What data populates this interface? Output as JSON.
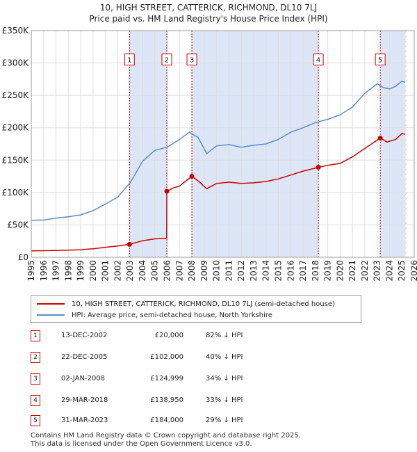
{
  "title_line1": "10, HIGH STREET, CATTERICK, RICHMOND, DL10 7LJ",
  "title_line2": "Price paid vs. HM Land Registry's House Price Index (HPI)",
  "colors": {
    "price": "#cc0000",
    "hpi": "#5b8cc8",
    "shade": "#dde6f7",
    "grid": "#dddddd"
  },
  "legend": {
    "price_label": "10, HIGH STREET, CATTERICK, RICHMOND, DL10 7LJ (semi-detached house)",
    "hpi_label": "HPI: Average price, semi-detached house, North Yorkshire"
  },
  "transactions": [
    {
      "num": "1",
      "date": "13-DEC-2002",
      "price": "£20,000",
      "hpi": "82% ↓ HPI"
    },
    {
      "num": "2",
      "date": "22-DEC-2005",
      "price": "£102,000",
      "hpi": "40% ↓ HPI"
    },
    {
      "num": "3",
      "date": "02-JAN-2008",
      "price": "£124,999",
      "hpi": "34% ↓ HPI"
    },
    {
      "num": "4",
      "date": "29-MAR-2018",
      "price": "£138,950",
      "hpi": "33% ↓ HPI"
    },
    {
      "num": "5",
      "date": "31-MAR-2023",
      "price": "£184,000",
      "hpi": "29% ↓ HPI"
    }
  ],
  "footer_line1": "Contains HM Land Registry data © Crown copyright and database right 2025.",
  "footer_line2": "This data is licensed under the Open Government Licence v3.0.",
  "chart_data": {
    "type": "line",
    "title": "Price paid vs. HM Land Registry's House Price Index (HPI)",
    "xlabel": "",
    "ylabel": "",
    "xlim": [
      1995,
      2026
    ],
    "ylim": [
      0,
      350000
    ],
    "x_ticks": [
      "1995",
      "1996",
      "1997",
      "1998",
      "1999",
      "2000",
      "2001",
      "2002",
      "2003",
      "2004",
      "2005",
      "2006",
      "2007",
      "2008",
      "2009",
      "2010",
      "2011",
      "2012",
      "2013",
      "2014",
      "2015",
      "2016",
      "2017",
      "2018",
      "2019",
      "2020",
      "2021",
      "2022",
      "2023",
      "2024",
      "2025",
      "2026"
    ],
    "y_ticks": [
      {
        "value": 0,
        "label": "£0"
      },
      {
        "value": 50000,
        "label": "£50K"
      },
      {
        "value": 100000,
        "label": "£100K"
      },
      {
        "value": 150000,
        "label": "£150K"
      },
      {
        "value": 200000,
        "label": "£200K"
      },
      {
        "value": 250000,
        "label": "£250K"
      },
      {
        "value": 300000,
        "label": "£300K"
      },
      {
        "value": 350000,
        "label": "£350K"
      }
    ],
    "shaded_periods": [
      [
        2002.95,
        2005.97
      ],
      [
        2008.0,
        2018.24
      ],
      [
        2023.25,
        2025.3
      ]
    ],
    "future_hatch_start": 2025.3,
    "series": [
      {
        "name": "HPI: Average price, semi-detached house, North Yorkshire",
        "points": [
          [
            1995,
            57000
          ],
          [
            1996,
            57500
          ],
          [
            1997,
            60500
          ],
          [
            1998,
            62500
          ],
          [
            1999,
            65500
          ],
          [
            2000,
            72000
          ],
          [
            2001,
            82000
          ],
          [
            2002,
            93000
          ],
          [
            2003,
            115000
          ],
          [
            2004,
            148000
          ],
          [
            2005,
            165000
          ],
          [
            2006,
            170000
          ],
          [
            2007,
            182000
          ],
          [
            2007.8,
            193000
          ],
          [
            2008.5,
            185000
          ],
          [
            2009.2,
            160000
          ],
          [
            2010,
            172000
          ],
          [
            2011,
            174000
          ],
          [
            2012,
            170000
          ],
          [
            2013,
            173000
          ],
          [
            2014,
            175000
          ],
          [
            2015,
            182000
          ],
          [
            2016,
            193000
          ],
          [
            2017,
            200000
          ],
          [
            2018,
            208000
          ],
          [
            2019,
            213000
          ],
          [
            2020,
            220000
          ],
          [
            2021,
            232000
          ],
          [
            2022,
            253000
          ],
          [
            2022.6,
            262000
          ],
          [
            2023,
            268000
          ],
          [
            2023.5,
            262000
          ],
          [
            2024,
            260000
          ],
          [
            2024.5,
            264000
          ],
          [
            2025,
            272000
          ],
          [
            2025.25,
            270000
          ]
        ]
      },
      {
        "name": "10, HIGH STREET, CATTERICK, RICHMOND, DL10 7LJ (semi-detached house)",
        "points": [
          [
            1995,
            10000
          ],
          [
            1996,
            10200
          ],
          [
            1997,
            10600
          ],
          [
            1998,
            11100
          ],
          [
            1999,
            11700
          ],
          [
            2000,
            13200
          ],
          [
            2001,
            15500
          ],
          [
            2002,
            17500
          ],
          [
            2002.95,
            20000
          ],
          [
            2004,
            25500
          ],
          [
            2005,
            28500
          ],
          [
            2005.96,
            29500
          ],
          [
            2005.97,
            102000
          ],
          [
            2006.5,
            107000
          ],
          [
            2007,
            110000
          ],
          [
            2008.0,
            124999
          ],
          [
            2008.5,
            118000
          ],
          [
            2009.2,
            106000
          ],
          [
            2010,
            114000
          ],
          [
            2011,
            116000
          ],
          [
            2012,
            114000
          ],
          [
            2013,
            115000
          ],
          [
            2014,
            117000
          ],
          [
            2015,
            121000
          ],
          [
            2016,
            127000
          ],
          [
            2017,
            133000
          ],
          [
            2018.24,
            138950
          ],
          [
            2019,
            142000
          ],
          [
            2020,
            145000
          ],
          [
            2021,
            155000
          ],
          [
            2022,
            168000
          ],
          [
            2023.25,
            184000
          ],
          [
            2023.8,
            178000
          ],
          [
            2024.5,
            182000
          ],
          [
            2025,
            191000
          ],
          [
            2025.25,
            190000
          ]
        ]
      }
    ],
    "sales": [
      {
        "label": "1",
        "x": 2002.95,
        "y": 20000
      },
      {
        "label": "2",
        "x": 2005.97,
        "y": 102000
      },
      {
        "label": "3",
        "x": 2008.0,
        "y": 124999
      },
      {
        "label": "4",
        "x": 2018.24,
        "y": 138950
      },
      {
        "label": "5",
        "x": 2023.25,
        "y": 184000
      }
    ]
  }
}
